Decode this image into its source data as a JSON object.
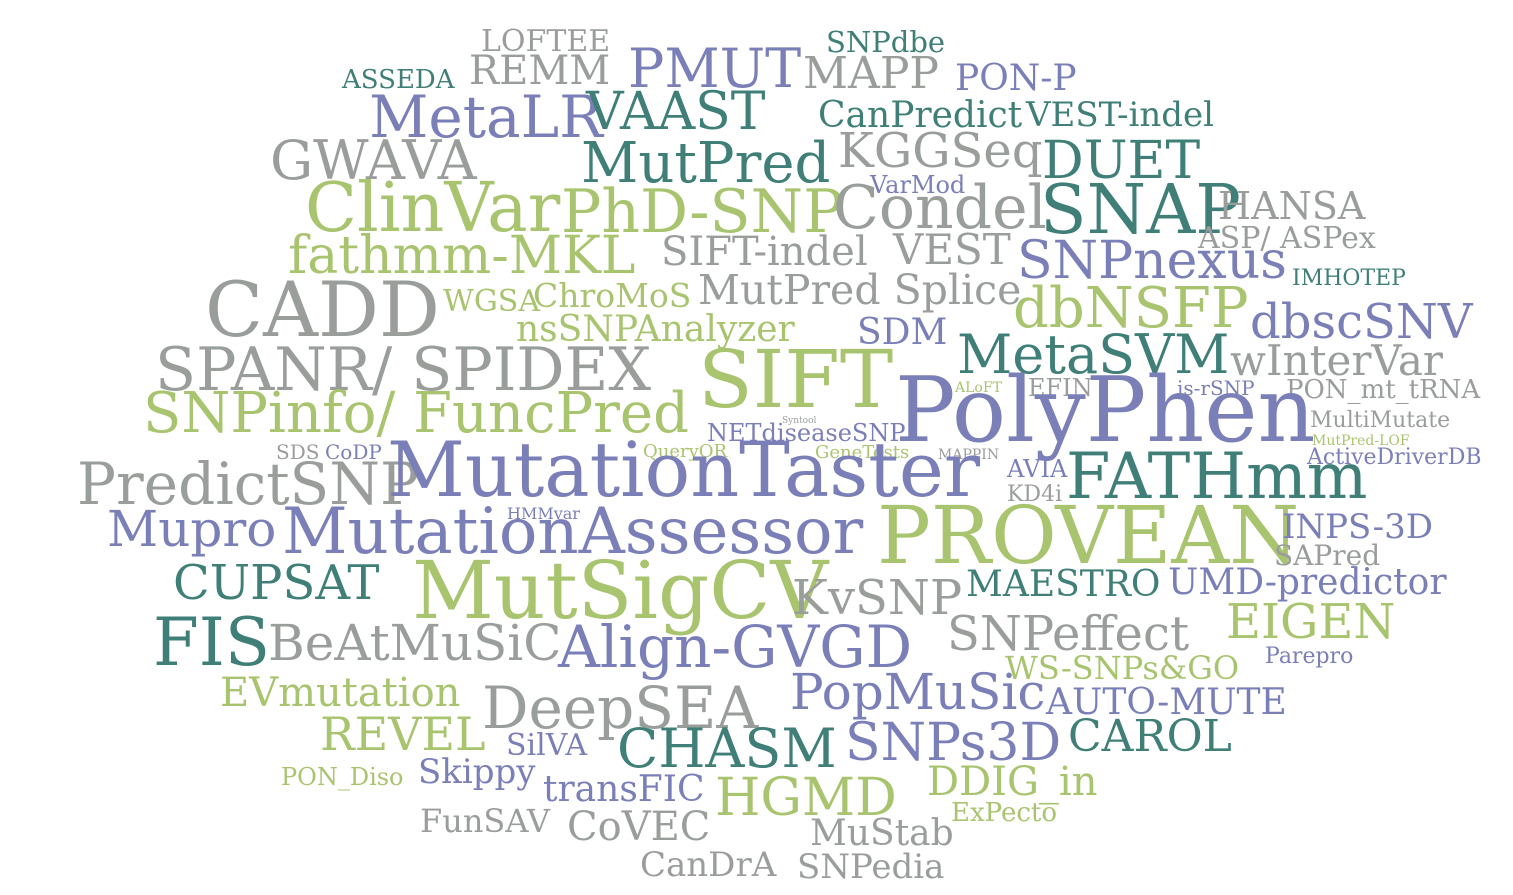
{
  "palette": {
    "gray": "#9a9e9b",
    "teal": "#3f7f78",
    "purple": "#7a7fb8",
    "green": "#a9c46f"
  },
  "words": [
    {
      "text": "LOFTEE",
      "color": "gray"
    },
    {
      "text": "SNPdbe",
      "color": "teal"
    },
    {
      "text": "ASSEDA",
      "color": "teal"
    },
    {
      "text": "REMM",
      "color": "gray"
    },
    {
      "text": "PMUT",
      "color": "purple"
    },
    {
      "text": "MAPP",
      "color": "gray"
    },
    {
      "text": "PON-P",
      "color": "purple"
    },
    {
      "text": "MetaLR",
      "color": "purple"
    },
    {
      "text": "VAAST",
      "color": "teal"
    },
    {
      "text": "CanPredict",
      "color": "teal"
    },
    {
      "text": "VEST-indel",
      "color": "teal"
    },
    {
      "text": "GWAVA",
      "color": "gray"
    },
    {
      "text": "MutPred",
      "color": "teal"
    },
    {
      "text": "KGGSeq",
      "color": "gray"
    },
    {
      "text": "DUET",
      "color": "teal"
    },
    {
      "text": "VarMod",
      "color": "purple"
    },
    {
      "text": "ClinVar",
      "color": "green"
    },
    {
      "text": "PhD-SNP",
      "color": "green"
    },
    {
      "text": "Condel",
      "color": "gray"
    },
    {
      "text": "SNAP",
      "color": "teal"
    },
    {
      "text": "HANSA",
      "color": "gray"
    },
    {
      "text": "fathmm-MKL",
      "color": "green"
    },
    {
      "text": "SIFT-indel",
      "color": "gray"
    },
    {
      "text": "VEST",
      "color": "gray"
    },
    {
      "text": "ASP/ ASPex",
      "color": "gray"
    },
    {
      "text": "SNPnexus",
      "color": "purple"
    },
    {
      "text": "IMHOTEP",
      "color": "teal"
    },
    {
      "text": "CADD",
      "color": "gray"
    },
    {
      "text": "WGSA",
      "color": "green"
    },
    {
      "text": "ChroMoS",
      "color": "green"
    },
    {
      "text": "MutPred Splice",
      "color": "gray"
    },
    {
      "text": "dbNSFP",
      "color": "green"
    },
    {
      "text": "nsSNPAnalyzer",
      "color": "green"
    },
    {
      "text": "SDM",
      "color": "purple"
    },
    {
      "text": "dbscSNV",
      "color": "purple"
    },
    {
      "text": "SPANR/ SPIDEX",
      "color": "gray"
    },
    {
      "text": "MetaSVM",
      "color": "teal"
    },
    {
      "text": "wInterVar",
      "color": "gray"
    },
    {
      "text": "SIFT",
      "color": "green"
    },
    {
      "text": "ALoFT",
      "color": "green"
    },
    {
      "text": "EFIN",
      "color": "gray"
    },
    {
      "text": "is-rSNP",
      "color": "purple"
    },
    {
      "text": "PON_mt_tRNA",
      "color": "gray"
    },
    {
      "text": "PolyPhen",
      "color": "purple"
    },
    {
      "text": "SNPinfo/ FuncPred",
      "color": "green"
    },
    {
      "text": "Syntool",
      "color": "gray"
    },
    {
      "text": "NETdiseaseSNP",
      "color": "purple"
    },
    {
      "text": "MultiMutate",
      "color": "gray"
    },
    {
      "text": "MutPred-LOF",
      "color": "green"
    },
    {
      "text": "SDS",
      "color": "gray"
    },
    {
      "text": "CoDP",
      "color": "purple"
    },
    {
      "text": "QueryOR",
      "color": "green"
    },
    {
      "text": "GeneTests",
      "color": "green"
    },
    {
      "text": "MAPPIN",
      "color": "gray"
    },
    {
      "text": "ActiveDriverDB",
      "color": "purple"
    },
    {
      "text": "PredictSNP",
      "color": "gray"
    },
    {
      "text": "MutationTaster",
      "color": "purple"
    },
    {
      "text": "AVIA",
      "color": "purple"
    },
    {
      "text": "FATHmm",
      "color": "teal"
    },
    {
      "text": "KD4i",
      "color": "gray"
    },
    {
      "text": "HMMvar",
      "color": "purple"
    },
    {
      "text": "Mupro",
      "color": "purple"
    },
    {
      "text": "MutationAssessor",
      "color": "purple"
    },
    {
      "text": "PROVEAN",
      "color": "green"
    },
    {
      "text": "INPS-3D",
      "color": "purple"
    },
    {
      "text": "SAPred",
      "color": "gray"
    },
    {
      "text": "CUPSAT",
      "color": "teal"
    },
    {
      "text": "MutSigCV",
      "color": "green"
    },
    {
      "text": "KvSNP",
      "color": "gray"
    },
    {
      "text": "MAESTRO",
      "color": "teal"
    },
    {
      "text": "UMD-predictor",
      "color": "purple"
    },
    {
      "text": "FIS",
      "color": "teal"
    },
    {
      "text": "BeAtMuSiC",
      "color": "gray"
    },
    {
      "text": "Align-GVGD",
      "color": "purple"
    },
    {
      "text": "SNPeffect",
      "color": "gray"
    },
    {
      "text": "EIGEN",
      "color": "green"
    },
    {
      "text": "WS-SNPs&GO",
      "color": "green"
    },
    {
      "text": "Parepro",
      "color": "purple"
    },
    {
      "text": "EVmutation",
      "color": "green"
    },
    {
      "text": "DeepSEA",
      "color": "gray"
    },
    {
      "text": "PopMuSic",
      "color": "purple"
    },
    {
      "text": "AUTO-MUTE",
      "color": "purple"
    },
    {
      "text": "REVEL",
      "color": "green"
    },
    {
      "text": "SilVA",
      "color": "purple"
    },
    {
      "text": "CHASM",
      "color": "teal"
    },
    {
      "text": "SNPs3D",
      "color": "purple"
    },
    {
      "text": "CAROL",
      "color": "teal"
    },
    {
      "text": "PON_Diso",
      "color": "green"
    },
    {
      "text": "Skippy",
      "color": "purple"
    },
    {
      "text": "transFIC",
      "color": "purple"
    },
    {
      "text": "HGMD",
      "color": "green"
    },
    {
      "text": "DDIG_in",
      "color": "green"
    },
    {
      "text": "ExPecto",
      "color": "green"
    },
    {
      "text": "FunSAV",
      "color": "gray"
    },
    {
      "text": "CoVEC",
      "color": "gray"
    },
    {
      "text": "MuStab",
      "color": "gray"
    },
    {
      "text": "CanDrA",
      "color": "gray"
    },
    {
      "text": "SNPedia",
      "color": "gray"
    }
  ]
}
